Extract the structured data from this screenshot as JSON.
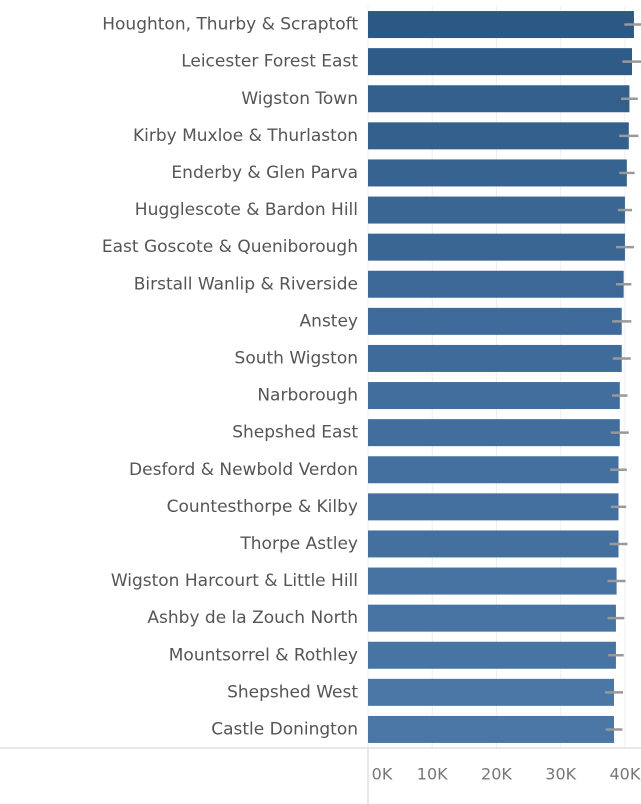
{
  "chart_data": {
    "type": "bar",
    "orientation": "horizontal",
    "categories": [
      "Houghton, Thurby & Scraptoft",
      "Leicester Forest East",
      "Wigston Town",
      "Kirby Muxloe & Thurlaston",
      "Enderby & Glen Parva",
      "Hugglescote & Bardon Hill",
      "East Goscote & Queniborough",
      "Birstall Wanlip & Riverside",
      "Anstey",
      "South Wigston",
      "Narborough",
      "Shepshed East",
      "Desford & Newbold Verdon",
      "Countesthorpe & Kilby",
      "Thorpe Astley",
      "Wigston Harcourt & Little Hill",
      "Ashby de la Zouch North",
      "Mountsorrel & Rothley",
      "Shepshed West",
      "Castle Donington"
    ],
    "values": [
      41400,
      41100,
      40700,
      40600,
      40300,
      40000,
      40000,
      39800,
      39500,
      39500,
      39200,
      39200,
      39000,
      39000,
      39000,
      38700,
      38600,
      38600,
      38300,
      38300
    ],
    "errors": [
      1500,
      1500,
      1300,
      1500,
      1200,
      1100,
      1400,
      1200,
      1500,
      1400,
      1200,
      1400,
      1300,
      1200,
      1400,
      1400,
      1300,
      1200,
      1400,
      1300
    ],
    "color_range": [
      "#4a77a6",
      "#2c5886"
    ],
    "error_color": "#999999",
    "xlim": [
      0,
      42500
    ],
    "xticks": [
      {
        "value": 0,
        "label": "0K"
      },
      {
        "value": 10000,
        "label": "10K"
      },
      {
        "value": 20000,
        "label": "20K"
      },
      {
        "value": 30000,
        "label": "30K"
      },
      {
        "value": 40000,
        "label": "40K"
      }
    ],
    "grid": true
  }
}
